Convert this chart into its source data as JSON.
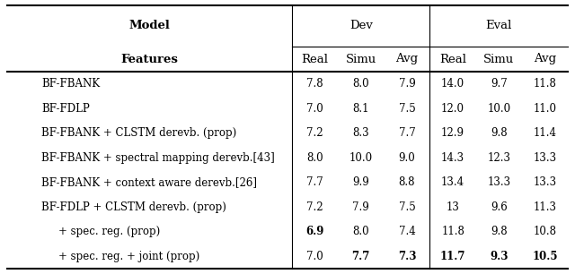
{
  "header_row1_left": "Model",
  "header_row1_left_bold": true,
  "header_row1_dev": "Dev",
  "header_row1_eval": "Eval",
  "header_row2_left": "Features",
  "header_row2_left_bold": true,
  "header_row2_cols": [
    "Real",
    "Simu",
    "Avg",
    "Real",
    "Simu",
    "Avg"
  ],
  "rows": [
    {
      "label": "BF-FBANK",
      "indent": false,
      "values": [
        "7.8",
        "8.0",
        "7.9",
        "14.0",
        "9.7",
        "11.8"
      ],
      "bold_cols": []
    },
    {
      "label": "BF-FDLP",
      "indent": false,
      "values": [
        "7.0",
        "8.1",
        "7.5",
        "12.0",
        "10.0",
        "11.0"
      ],
      "bold_cols": []
    },
    {
      "label": "BF-FBANK + CLSTM derevb. (prop)",
      "indent": false,
      "values": [
        "7.2",
        "8.3",
        "7.7",
        "12.9",
        "9.8",
        "11.4"
      ],
      "bold_cols": []
    },
    {
      "label": "BF-FBANK + spectral mapping derevb.[43]",
      "indent": false,
      "values": [
        "8.0",
        "10.0",
        "9.0",
        "14.3",
        "12.3",
        "13.3"
      ],
      "bold_cols": []
    },
    {
      "label": "BF-FBANK + context aware derevb.[26]",
      "indent": false,
      "values": [
        "7.7",
        "9.9",
        "8.8",
        "13.4",
        "13.3",
        "13.3"
      ],
      "bold_cols": []
    },
    {
      "label": "BF-FDLP + CLSTM derevb. (prop)",
      "indent": false,
      "values": [
        "7.2",
        "7.9",
        "7.5",
        "13",
        "9.6",
        "11.3"
      ],
      "bold_cols": []
    },
    {
      "label": "+ spec. reg. (prop)",
      "indent": true,
      "values": [
        "6.9",
        "8.0",
        "7.4",
        "11.8",
        "9.8",
        "10.8"
      ],
      "bold_cols": [
        0
      ]
    },
    {
      "label": "+ spec. reg. + joint (prop)",
      "indent": true,
      "values": [
        "7.0",
        "7.7",
        "7.3",
        "11.7",
        "9.3",
        "10.5"
      ],
      "bold_cols": [
        1,
        2,
        3,
        4,
        5
      ]
    }
  ],
  "bg_color": "#ffffff",
  "line_color": "#000000",
  "font_size": 8.5,
  "header_font_size": 9.5
}
